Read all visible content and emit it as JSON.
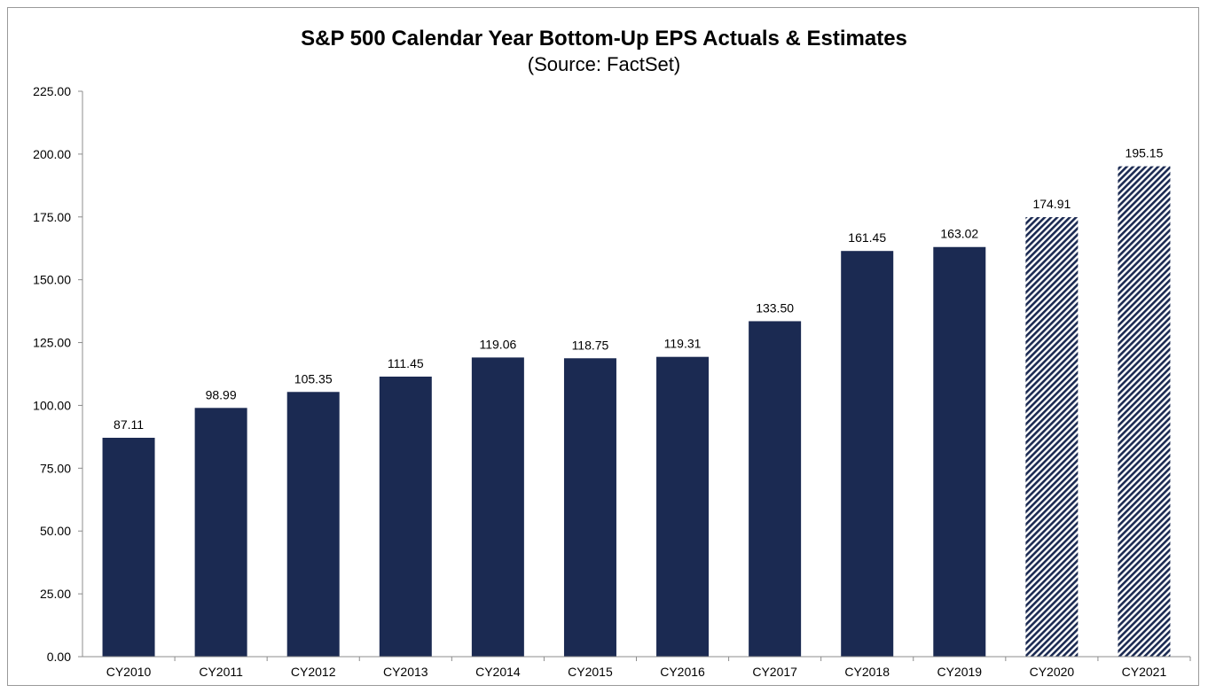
{
  "chart_data": {
    "type": "bar",
    "title": "S&P 500 Calendar Year Bottom-Up EPS Actuals & Estimates",
    "subtitle": "(Source: FactSet)",
    "xlabel": "",
    "ylabel": "",
    "ylim": [
      0,
      225
    ],
    "yticks": [
      "0.00",
      "25.00",
      "50.00",
      "75.00",
      "100.00",
      "125.00",
      "150.00",
      "175.00",
      "200.00",
      "225.00"
    ],
    "ytick_values": [
      0,
      25,
      50,
      75,
      100,
      125,
      150,
      175,
      200,
      225
    ],
    "categories": [
      "CY2010",
      "CY2011",
      "CY2012",
      "CY2013",
      "CY2014",
      "CY2015",
      "CY2016",
      "CY2017",
      "CY2018",
      "CY2019",
      "CY2020",
      "CY2021"
    ],
    "values": [
      87.11,
      98.99,
      105.35,
      111.45,
      119.06,
      118.75,
      119.31,
      133.5,
      161.45,
      163.02,
      174.91,
      195.15
    ],
    "value_labels": [
      "87.11",
      "98.99",
      "105.35",
      "111.45",
      "119.06",
      "118.75",
      "119.31",
      "133.50",
      "161.45",
      "163.02",
      "174.91",
      "195.15"
    ],
    "estimate_flags": [
      false,
      false,
      false,
      false,
      false,
      false,
      false,
      false,
      false,
      false,
      true,
      true
    ],
    "grid": false,
    "legend": "none",
    "colors": {
      "actual": "#1b2a52",
      "estimate_stripe": "#1b2a52",
      "estimate_background": "#ffffff"
    }
  }
}
